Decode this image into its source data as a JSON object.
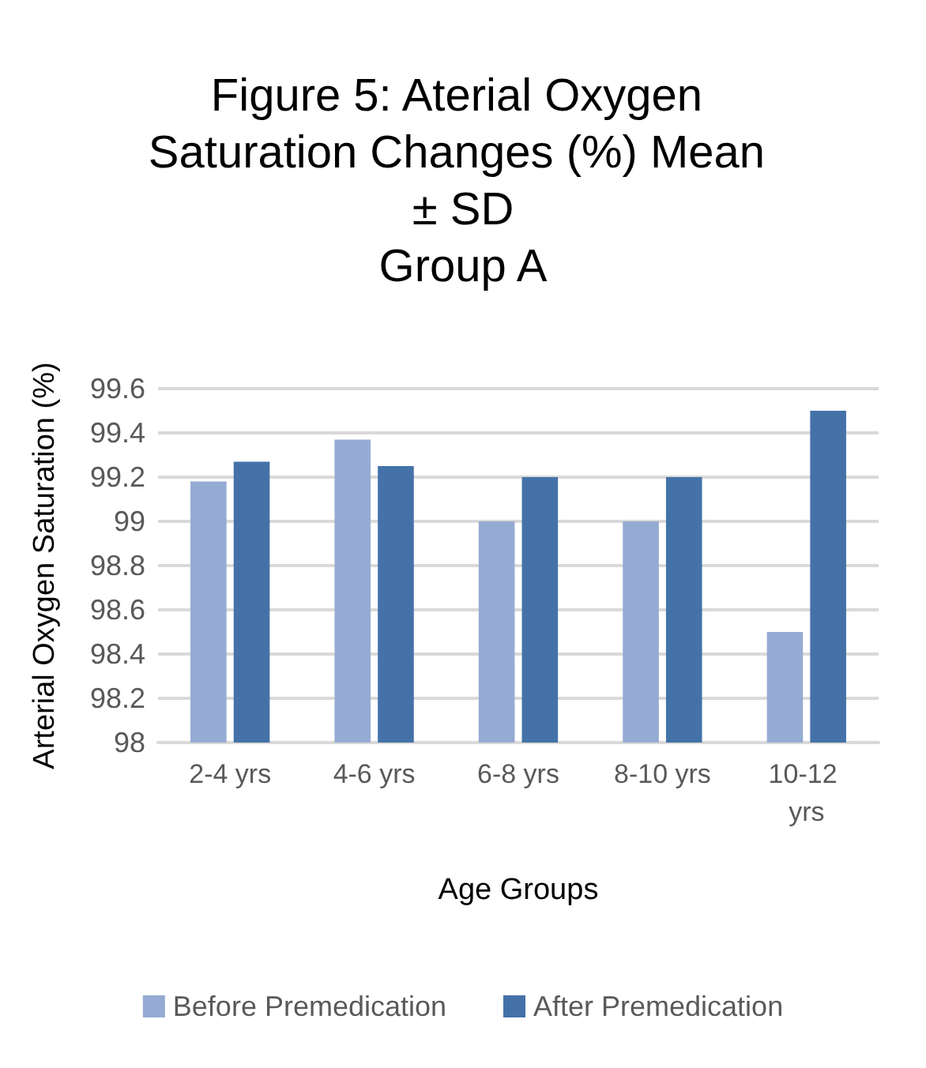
{
  "chart_data": {
    "type": "bar",
    "title": "Figure 5: Aterial Oxygen Saturation Changes (%) Mean ± SD\nGroup A",
    "xlabel": "Age Groups",
    "ylabel": "Arterial Oxygen Saturation (%)",
    "categories": [
      "2-4 yrs",
      "4-6 yrs",
      "6-8 yrs",
      "8-10 yrs",
      "10-12 yrs"
    ],
    "series": [
      {
        "name": "Before Premedication",
        "color": "#95abd3",
        "values": [
          99.18,
          99.37,
          99.0,
          99.0,
          98.5
        ]
      },
      {
        "name": "After Premedication",
        "color": "#4472a8",
        "values": [
          99.27,
          99.25,
          99.2,
          99.2,
          99.5
        ]
      }
    ],
    "ylim": [
      98,
      99.6
    ],
    "yticks": [
      98,
      98.2,
      98.4,
      98.6,
      98.8,
      99,
      99.2,
      99.4,
      99.6
    ],
    "grid": "y",
    "legend": "bottom"
  }
}
